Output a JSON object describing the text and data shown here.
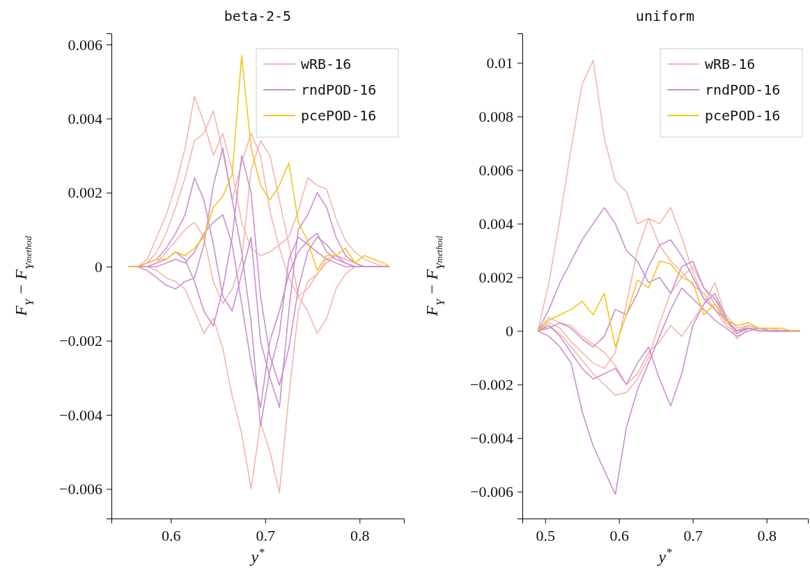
{
  "chart_data": [
    {
      "type": "line",
      "title": "beta-2-5",
      "xlabel": "y$^{*}$",
      "ylabel": "F$_{Y}$ − F$_{Y}$$_{method}$",
      "legend": "top right",
      "grid": false,
      "x": [
        0.555,
        0.565,
        0.575,
        0.585,
        0.595,
        0.605,
        0.615,
        0.625,
        0.635,
        0.645,
        0.655,
        0.665,
        0.675,
        0.685,
        0.695,
        0.705,
        0.715,
        0.725,
        0.735,
        0.745,
        0.755,
        0.765,
        0.775,
        0.785,
        0.795,
        0.805,
        0.815,
        0.825,
        0.832
      ],
      "xlim": [
        0.537,
        0.847
      ],
      "xticks": [
        0.6,
        0.7,
        0.8
      ],
      "ylim": [
        -0.0068,
        0.0063
      ],
      "yticks": [
        {
          "value": -0.006,
          "label": "−0.006"
        },
        {
          "value": -0.004,
          "label": "−0.004"
        },
        {
          "value": -0.002,
          "label": "−0.002"
        },
        0,
        0.002,
        0.004,
        0.006
      ],
      "series": [
        {
          "name": "wRB-16",
          "color": "#f5b5ab",
          "values": [
            0,
            0,
            0.0002,
            0.0008,
            0.0014,
            0.0022,
            0.0032,
            0.0046,
            0.0039,
            0.003,
            0.0036,
            0.0026,
            0.0012,
            0.0005,
            0.0003,
            0.0004,
            0.0006,
            0.0008,
            0.0015,
            0.0024,
            0.0022,
            0.0021,
            0.0013,
            0.0007,
            0.0004,
            0.0002,
            0.0001,
            0,
            0
          ]
        },
        {
          "color": "#f5b5ab",
          "values": [
            0,
            0,
            0.0001,
            0.0004,
            0.0009,
            0.0016,
            0.0024,
            0.0034,
            0.0036,
            0.0042,
            0.0031,
            0.0018,
            0.0028,
            0.0036,
            0.003,
            0.0015,
            0.0005,
            -0.0003,
            -0.0008,
            -0.0006,
            -0.0002,
            0.0002,
            0.0003,
            0.0002,
            0.0001,
            0,
            0,
            0,
            0
          ]
        },
        {
          "color": "#f5b5ab",
          "values": [
            0,
            0,
            0,
            -0.0001,
            -0.0003,
            -0.0004,
            -0.0006,
            -0.0012,
            -0.0018,
            -0.0014,
            -0.0022,
            -0.0035,
            -0.0045,
            -0.006,
            -0.0042,
            -0.005,
            -0.0061,
            -0.0035,
            -0.0012,
            -0.0004,
            -0.0002,
            0.0001,
            0.0003,
            0.0002,
            0.0001,
            0,
            0,
            0,
            0
          ]
        },
        {
          "color": "#f5b5ab",
          "values": [
            0,
            0,
            0,
            0.0001,
            0.0004,
            0.0007,
            0.001,
            0.0012,
            0.0008,
            -0.0004,
            -0.001,
            -0.0006,
            0.0002,
            0.0026,
            0.0034,
            0.003,
            0.0018,
            0.0006,
            -0.0008,
            -0.0012,
            -0.0018,
            -0.0014,
            -0.0006,
            -0.0002,
            0,
            0,
            0,
            0,
            0
          ]
        },
        {
          "name": "rndPOD-16",
          "color": "#c98fd0",
          "values": [
            0,
            0,
            -0.0001,
            -0.0003,
            -0.0005,
            -0.0006,
            -0.0004,
            -0.0003,
            0.0006,
            0.0022,
            0.0032,
            0.0018,
            0.0004,
            -0.0015,
            -0.0043,
            -0.0028,
            -0.0018,
            0.0002,
            0.0008,
            0.0006,
            0.0004,
            0.0002,
            0.0001,
            0,
            0,
            0,
            0,
            0,
            0
          ]
        },
        {
          "color": "#c98fd0",
          "values": [
            0,
            0,
            0.0001,
            0.0002,
            0.0005,
            0.0009,
            0.0014,
            0.0024,
            0.0018,
            0.0006,
            -0.0008,
            -0.0012,
            -0.0002,
            0.0008,
            -0.002,
            -0.003,
            -0.0038,
            -0.0012,
            0.001,
            0.0014,
            0.002,
            0.0016,
            0.0008,
            0.0003,
            0.0001,
            0,
            0,
            0,
            0
          ]
        },
        {
          "color": "#c98fd0",
          "values": [
            0,
            0,
            0,
            0.0001,
            0.0002,
            0.0004,
            0.0002,
            -0.0004,
            -0.0012,
            -0.0016,
            -0.0006,
            0.0008,
            0.003,
            0.002,
            -0.0008,
            -0.0024,
            -0.0032,
            -0.0022,
            -0.0006,
            0.0004,
            0.0008,
            0.0006,
            0.0003,
            0.0001,
            0,
            0,
            0,
            0,
            0
          ]
        },
        {
          "color": "#c98fd0",
          "values": [
            0,
            0,
            0,
            0,
            0.0001,
            0.0002,
            0.0001,
            0.0004,
            0.0009,
            0.0012,
            0.0014,
            0.0006,
            -0.001,
            -0.0026,
            -0.0038,
            -0.002,
            -0.0012,
            -0.0002,
            0.0004,
            0.0007,
            0.0009,
            0.0004,
            0.0002,
            0.0001,
            0,
            0,
            0,
            0,
            0
          ]
        },
        {
          "name": "pcePOD-16",
          "color": "#f5c518",
          "values": [
            0,
            0,
            0.0001,
            0.0002,
            0.0002,
            0.0004,
            0.0003,
            0.0005,
            0.0008,
            0.0016,
            0.0019,
            0.0025,
            0.0057,
            0.0032,
            0.0022,
            0.0018,
            0.0022,
            0.0028,
            0.0012,
            0.0007,
            -0.0001,
            0.0003,
            0.0003,
            0.0005,
            0.0001,
            0.0003,
            0.0002,
            0.0001,
            0
          ]
        }
      ]
    },
    {
      "type": "line",
      "title": "uniform",
      "xlabel": "y$^{*}$",
      "ylabel": "F$_{Y}$ − F$_{Y}$$_{method}$",
      "legend": "top right",
      "grid": false,
      "x": [
        0.49,
        0.505,
        0.52,
        0.535,
        0.55,
        0.565,
        0.58,
        0.595,
        0.61,
        0.625,
        0.64,
        0.655,
        0.67,
        0.685,
        0.7,
        0.715,
        0.73,
        0.745,
        0.76,
        0.775,
        0.79,
        0.805,
        0.82,
        0.835,
        0.845
      ],
      "xlim": [
        0.469,
        0.856
      ],
      "xticks": [
        0.5,
        0.6,
        0.7,
        0.8
      ],
      "ylim": [
        -0.007,
        0.0111
      ],
      "yticks": [
        {
          "value": -0.006,
          "label": "−0.006"
        },
        {
          "value": -0.004,
          "label": "−0.004"
        },
        {
          "value": -0.002,
          "label": "−0.002"
        },
        0,
        0.002,
        0.004,
        0.006,
        0.008,
        0.01
      ],
      "series": [
        {
          "name": "wRB-16",
          "color": "#f5b5ab",
          "values": [
            0,
            0.0018,
            0.0042,
            0.0068,
            0.0092,
            0.0101,
            0.0072,
            0.0056,
            0.0052,
            0.004,
            0.0042,
            0.0032,
            0.0026,
            0.0022,
            0.0017,
            0.0014,
            0.0008,
            0.0002,
            -0.0001,
            0.0002,
            0.0001,
            0.0001,
            0,
            0,
            0
          ]
        },
        {
          "color": "#f5b5ab",
          "values": [
            0,
            0.0003,
            0.0001,
            -0.0004,
            -0.0008,
            -0.0012,
            -0.0014,
            -0.0008,
            0.001,
            0.003,
            0.0042,
            0.004,
            0.0046,
            0.0035,
            0.0022,
            0.0012,
            0.0012,
            0.0006,
            0.0001,
            0.0002,
            0.0001,
            0,
            0,
            0,
            0
          ]
        },
        {
          "color": "#f5b5ab",
          "values": [
            0,
            0.0002,
            -0.0001,
            -0.0006,
            -0.0011,
            -0.0016,
            -0.002,
            -0.0024,
            -0.0023,
            -0.0018,
            -0.001,
            0.0003,
            0.0014,
            0.002,
            0.0024,
            0.0016,
            0.001,
            0.0003,
            0,
            0.0002,
            0.0001,
            0,
            0,
            0,
            0
          ]
        },
        {
          "color": "#f5b5ab",
          "values": [
            0,
            0.0005,
            0.0003,
            0.0002,
            -0.0002,
            -0.0005,
            -0.0008,
            -0.0013,
            -0.002,
            -0.0016,
            -0.0008,
            -0.0004,
            0.0002,
            -0.0002,
            0.0004,
            0.001,
            0.0018,
            0.0005,
            -0.0003,
            0.0001,
            0.0001,
            0,
            0,
            0,
            0
          ]
        },
        {
          "name": "rndPOD-16",
          "color": "#c98fd0",
          "values": [
            0,
            -0.0002,
            -0.0006,
            -0.0012,
            -0.003,
            -0.0043,
            -0.0052,
            -0.0061,
            -0.0036,
            -0.0022,
            -0.0012,
            -0.0002,
            0.0008,
            0.0016,
            0.0012,
            0.0008,
            0.0004,
            0.0001,
            -0.0002,
            0,
            0.0001,
            0,
            0,
            0,
            0
          ]
        },
        {
          "color": "#c98fd0",
          "values": [
            0,
            0.0008,
            0.0018,
            0.0026,
            0.0034,
            0.004,
            0.0046,
            0.004,
            0.003,
            0.0026,
            0.0018,
            0.002,
            0.0014,
            0.0024,
            0.0026,
            0.0016,
            0.0012,
            0.0004,
            0,
            0.0001,
            0,
            0,
            0,
            0,
            0
          ]
        },
        {
          "color": "#c98fd0",
          "values": [
            0,
            0.0002,
            -0.0002,
            -0.0008,
            -0.0014,
            -0.0018,
            -0.0016,
            -0.0014,
            -0.002,
            -0.0012,
            -0.0006,
            -0.0018,
            -0.0028,
            -0.0016,
            0.0002,
            0.001,
            0.0014,
            0.0005,
            -0.0001,
            0.0001,
            0,
            0,
            0,
            0,
            0
          ]
        },
        {
          "color": "#c98fd0",
          "values": [
            0,
            0.0001,
            0.0003,
            0.0001,
            -0.0003,
            -0.0006,
            -0.0002,
            0.0008,
            0.0006,
            0.0014,
            0.0024,
            0.0032,
            0.0034,
            0.0028,
            0.002,
            0.0012,
            0.0008,
            0.0004,
            0,
            0.0001,
            0,
            0,
            0,
            0,
            0
          ]
        },
        {
          "name": "pcePOD-16",
          "color": "#f5c518",
          "values": [
            0,
            0.0004,
            0.0006,
            0.0008,
            0.0011,
            0.0006,
            0.0014,
            -0.0006,
            0.0006,
            0.0019,
            0.0016,
            0.0026,
            0.0025,
            0.002,
            0.0018,
            0.0006,
            0.001,
            0.0004,
            0.0002,
            0.0003,
            0.0001,
            0.0001,
            0.0001,
            0,
            0
          ]
        }
      ]
    }
  ]
}
